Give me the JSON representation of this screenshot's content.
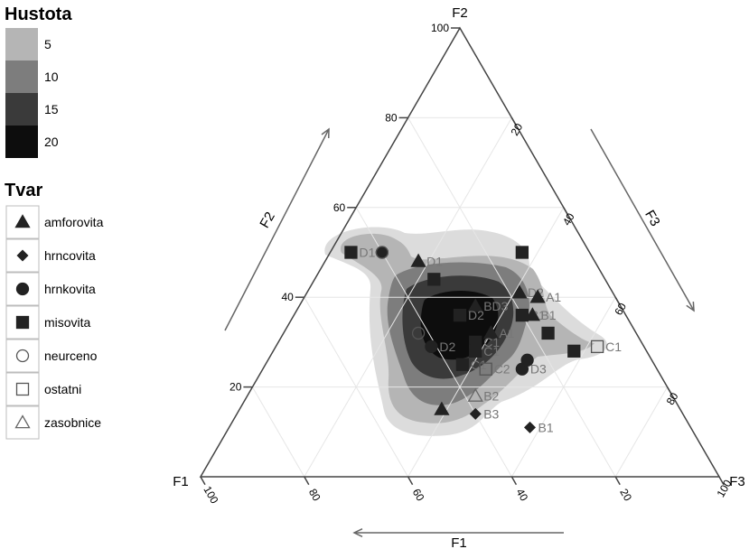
{
  "chart_data": {
    "type": "ternary-scatter-density",
    "axes": {
      "F1": {
        "label": "F1",
        "ticks": [
          100,
          80,
          60,
          40,
          20
        ]
      },
      "F2": {
        "label": "F2",
        "ticks": [
          100,
          80,
          60,
          40,
          20
        ]
      },
      "F3": {
        "label": "F3",
        "ticks": [
          100,
          80,
          60,
          40,
          20
        ]
      }
    },
    "density_legend": {
      "title": "Hustota",
      "levels": [
        {
          "label": "5",
          "color": "#b5b5b5"
        },
        {
          "label": "10",
          "color": "#7d7d7d"
        },
        {
          "label": "15",
          "color": "#3a3a3a"
        },
        {
          "label": "20",
          "color": "#0d0d0d"
        }
      ]
    },
    "shape_legend": {
      "title": "Tvar",
      "items": [
        {
          "label": "amforovita",
          "icon": "filled-triangle"
        },
        {
          "label": "hrncovita",
          "icon": "filled-diamond"
        },
        {
          "label": "hrnkovita",
          "icon": "filled-circle"
        },
        {
          "label": "misovita",
          "icon": "filled-square"
        },
        {
          "label": "neurceno",
          "icon": "open-circle"
        },
        {
          "label": "ostatni",
          "icon": "open-square"
        },
        {
          "label": "zasobnice",
          "icon": "open-triangle"
        }
      ]
    },
    "points": [
      {
        "label": "D1",
        "shape": "misovita",
        "f1": 46,
        "f2": 50,
        "f3": 4
      },
      {
        "label": "",
        "shape": "hrnkovita",
        "f1": 40,
        "f2": 50,
        "f3": 10
      },
      {
        "label": "",
        "shape": "neurceno",
        "f1": 40,
        "f2": 50,
        "f3": 10
      },
      {
        "label": "D1",
        "shape": "amforovita",
        "f1": 34,
        "f2": 48,
        "f3": 18
      },
      {
        "label": "",
        "shape": "misovita",
        "f1": 33,
        "f2": 44,
        "f3": 23
      },
      {
        "label": "",
        "shape": "misovita",
        "f1": 13,
        "f2": 50,
        "f3": 37
      },
      {
        "label": "BD3",
        "shape": "amforovita",
        "f1": 28,
        "f2": 38,
        "f3": 34
      },
      {
        "label": "D2",
        "shape": "misovita",
        "f1": 32,
        "f2": 36,
        "f3": 32
      },
      {
        "label": "A1",
        "shape": "amforovita",
        "f1": 28,
        "f2": 32,
        "f3": 40
      },
      {
        "label": "C1",
        "shape": "misovita",
        "f1": 32,
        "f2": 30,
        "f3": 38
      },
      {
        "label": "C1",
        "shape": "misovita",
        "f1": 33,
        "f2": 28,
        "f3": 39
      },
      {
        "label": "",
        "shape": "neurceno",
        "f1": 42,
        "f2": 32,
        "f3": 26
      },
      {
        "label": "D2",
        "shape": "hrnkovita",
        "f1": 41,
        "f2": 29,
        "f3": 30
      },
      {
        "label": "C1",
        "shape": "misovita",
        "f1": 37,
        "f2": 25,
        "f3": 38
      },
      {
        "label": "C2",
        "shape": "ostatni",
        "f1": 33,
        "f2": 24,
        "f3": 43
      },
      {
        "label": "D3",
        "shape": "hrnkovita",
        "f1": 26,
        "f2": 24,
        "f3": 50
      },
      {
        "label": "",
        "shape": "hrnkovita",
        "f1": 24,
        "f2": 26,
        "f3": 50
      },
      {
        "label": "",
        "shape": "misovita",
        "f1": 17,
        "f2": 32,
        "f3": 51
      },
      {
        "label": "",
        "shape": "misovita",
        "f1": 14,
        "f2": 28,
        "f3": 58
      },
      {
        "label": "C1",
        "shape": "ostatni",
        "f1": 9,
        "f2": 29,
        "f3": 62
      },
      {
        "label": "D2",
        "shape": "amforovita",
        "f1": 18,
        "f2": 41,
        "f3": 41
      },
      {
        "label": "A1",
        "shape": "amforovita",
        "f1": 15,
        "f2": 40,
        "f3": 45
      },
      {
        "label": "B1",
        "shape": "misovita",
        "f1": 20,
        "f2": 36,
        "f3": 44
      },
      {
        "label": "B1",
        "shape": "amforovita",
        "f1": 18,
        "f2": 36,
        "f3": 46
      },
      {
        "label": "",
        "shape": "amforovita",
        "f1": 46,
        "f2": 15,
        "f3": 39
      },
      {
        "label": "B3",
        "shape": "hrncovita",
        "f1": 40,
        "f2": 14,
        "f3": 46
      },
      {
        "label": "B2",
        "shape": "zasobnice",
        "f1": 38,
        "f2": 18,
        "f3": 44
      },
      {
        "label": "B1",
        "shape": "hrncovita",
        "f1": 31,
        "f2": 11,
        "f3": 58
      }
    ]
  }
}
